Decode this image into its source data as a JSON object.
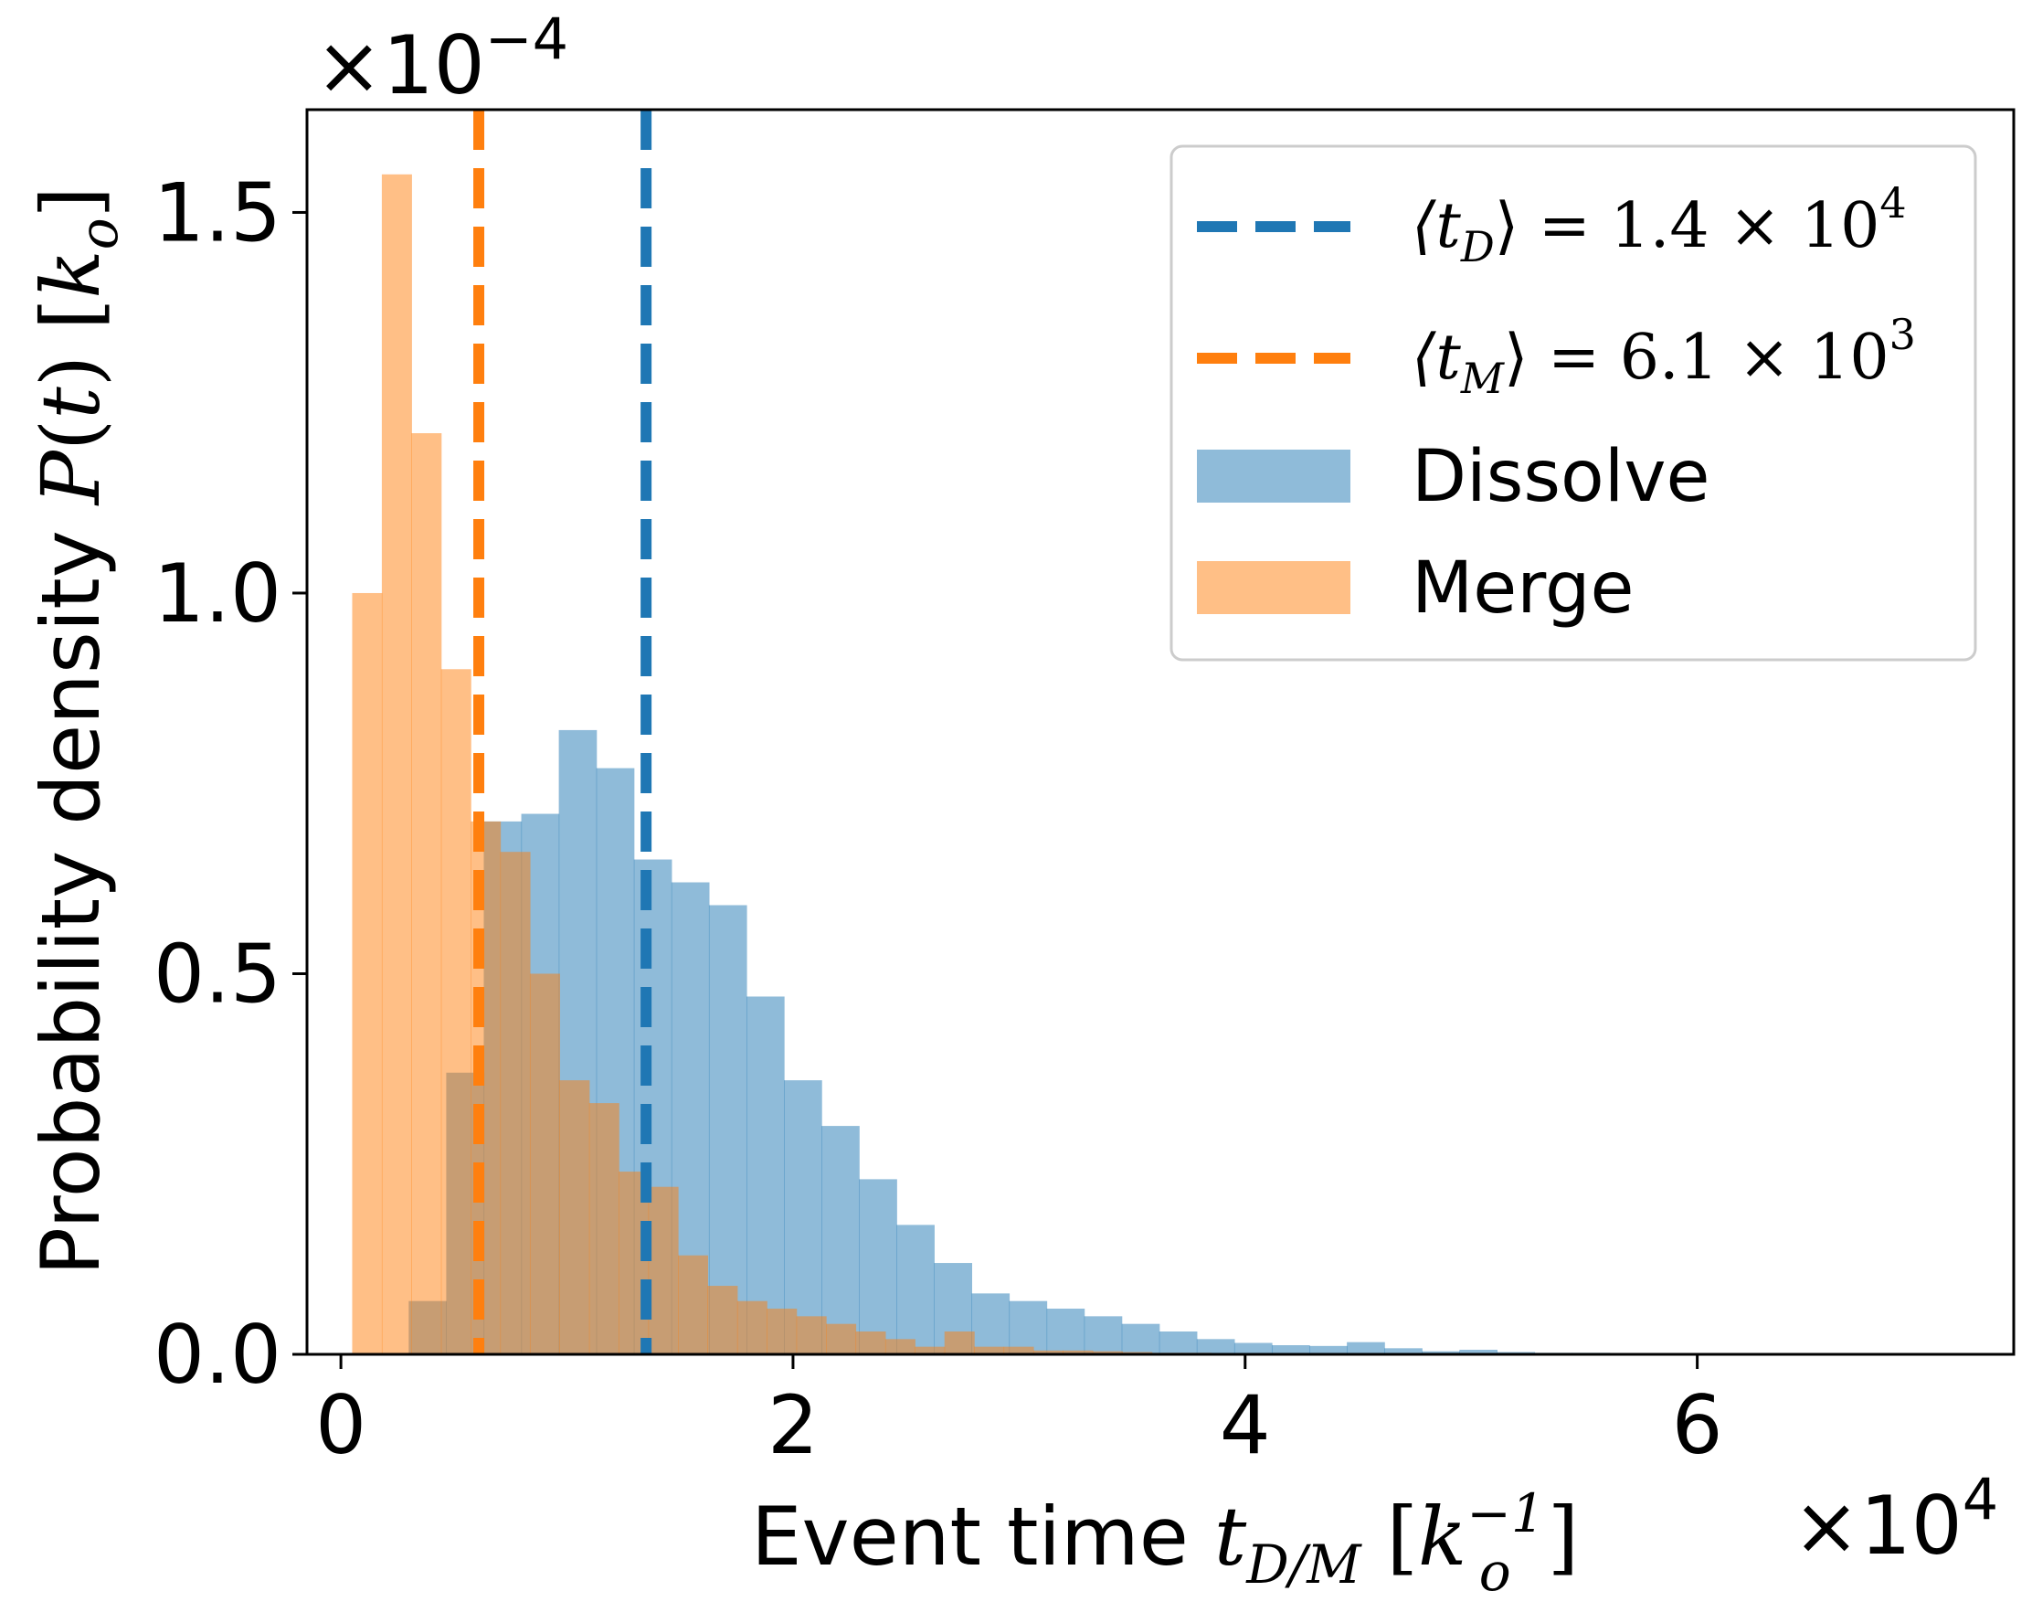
{
  "chart_data": {
    "type": "bar",
    "title": "",
    "xlabel": "Event time t_{D/M} [k_o^{-1}]",
    "ylabel": "Probability density P(t) [k_o]",
    "x_scale_label": "×10",
    "x_scale_exp": "4",
    "y_scale_label": "×10",
    "y_scale_exp": "−4",
    "xlim": [
      -0.15,
      7.4
    ],
    "ylim": [
      0,
      1.635
    ],
    "x_ticks": [
      0,
      2,
      4,
      6
    ],
    "x_tick_labels": [
      "0",
      "2",
      "4",
      "6"
    ],
    "y_ticks": [
      0.0,
      0.5,
      1.0,
      1.5
    ],
    "y_tick_labels": [
      "0.0",
      "0.5",
      "1.0",
      "1.5"
    ],
    "legend_position": "upper right",
    "grid": false,
    "series": [
      {
        "name": "Dissolve",
        "color": "#1f77b4",
        "alpha": 0.5,
        "bin_start": 0.3,
        "bin_width": 0.166,
        "values": [
          0.07,
          0.37,
          0.7,
          0.71,
          0.82,
          0.77,
          0.65,
          0.62,
          0.59,
          0.47,
          0.36,
          0.3,
          0.23,
          0.17,
          0.12,
          0.08,
          0.07,
          0.06,
          0.05,
          0.04,
          0.03,
          0.02,
          0.015,
          0.012,
          0.011,
          0.016,
          0.008,
          0.004,
          0.006,
          0.003,
          0.002,
          0.002,
          0.001,
          0.001,
          0.001,
          0.001,
          0.0005,
          0.0005,
          0.0005,
          0.0005,
          0.0005
        ]
      },
      {
        "name": "Merge",
        "color": "#ff7f0e",
        "alpha": 0.5,
        "bin_start": 0.05,
        "bin_width": 0.131,
        "values": [
          1.0,
          1.55,
          1.21,
          0.9,
          0.7,
          0.66,
          0.5,
          0.36,
          0.33,
          0.24,
          0.22,
          0.13,
          0.09,
          0.07,
          0.06,
          0.05,
          0.04,
          0.03,
          0.02,
          0.01,
          0.03,
          0.01,
          0.01,
          0.005,
          0.005,
          0.004,
          0.003,
          0.002,
          0.002,
          0.001
        ]
      }
    ],
    "vlines": [
      {
        "name": "⟨t_D⟩",
        "x": 1.35,
        "color": "#1f77b4",
        "legend_lhs": "⟨t",
        "legend_sub": "D",
        "legend_rhs": "⟩ = 1.4 × 10",
        "legend_exp": "4"
      },
      {
        "name": "⟨t_M⟩",
        "x": 0.61,
        "color": "#ff7f0e",
        "legend_lhs": "⟨t",
        "legend_sub": "M",
        "legend_rhs": "⟩ = 6.1 × 10",
        "legend_exp": "3"
      }
    ]
  }
}
